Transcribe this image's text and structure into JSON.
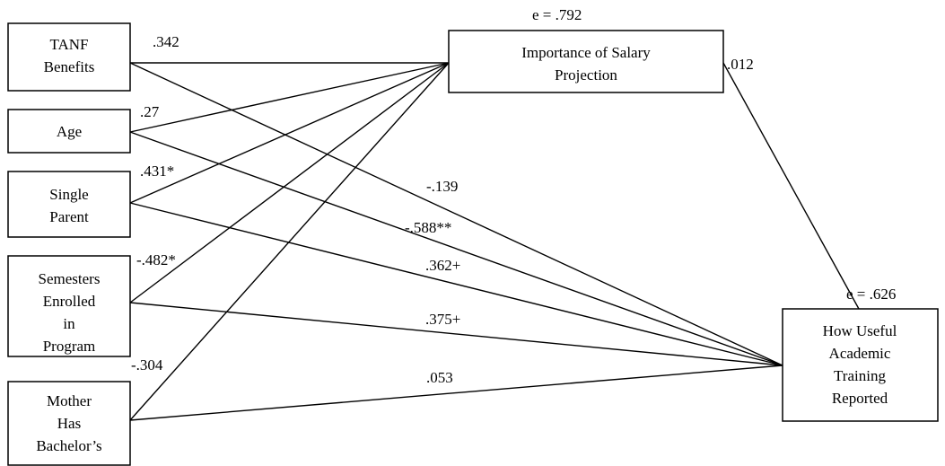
{
  "nodes": {
    "tanf": {
      "lines": [
        "TANF",
        "Benefits"
      ]
    },
    "age": {
      "lines": [
        "Age"
      ]
    },
    "single": {
      "lines": [
        "Single",
        "Parent"
      ]
    },
    "semesters": {
      "lines": [
        "Semesters",
        "Enrolled",
        "in",
        "Program"
      ]
    },
    "mother": {
      "lines": [
        "Mother",
        "Has",
        "Bachelor’s"
      ]
    },
    "salary": {
      "lines": [
        "Importance of Salary",
        "Projection"
      ]
    },
    "useful": {
      "lines": [
        "How Useful",
        "Academic",
        "Training",
        "Reported"
      ]
    }
  },
  "errors": {
    "salary": "e = .792",
    "useful": "e = .626"
  },
  "coefficients": {
    "tanf_to_salary": ".342",
    "age_to_salary": ".27",
    "single_to_salary": ".431*",
    "semesters_to_salary": "-.482*",
    "mother_to_salary": "-.304",
    "salary_to_useful": ".012",
    "tanf_to_useful": "-.139",
    "age_to_useful": "-.588**",
    "single_to_useful": ".362+",
    "semesters_to_useful": ".375+",
    "mother_to_useful": ".053"
  }
}
